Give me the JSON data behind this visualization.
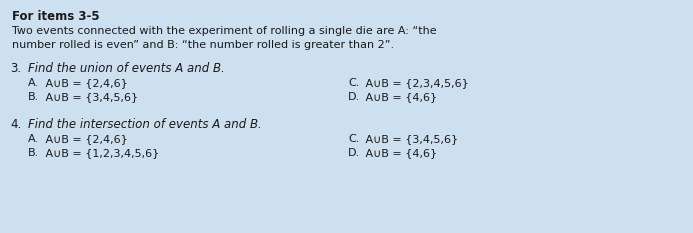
{
  "bg_color": "#cde0ef",
  "text_color": "#1a1a1a",
  "header_bold": "For items 3-5",
  "header_line1": "Two events connected with the experiment of rolling a single die are A: “the",
  "header_line2": "number rolled is even” and B: “the number rolled is greater than 2”.",
  "q3_num": "3.",
  "q3_text": "Find the union of events A and B.",
  "q3_A_label": "A.",
  "q3_A_math": " A∪B = {2,4,6}",
  "q3_B_label": "B.",
  "q3_B_math": " A∪B = {3,4,5,6}",
  "q3_C_label": "C.",
  "q3_C_math": " A∪B = {2,3,4,5,6}",
  "q3_D_label": "D.",
  "q3_D_math": " A∪B = {4,6}",
  "q4_num": "4.",
  "q4_text": "Find the intersection of events A and B.",
  "q4_A_label": "A.",
  "q4_A_math": " A∪B = {2,4,6}",
  "q4_B_label": "B.",
  "q4_B_math": " A∪B = {1,2,3,4,5,6}",
  "q4_C_label": "C.",
  "q4_C_math": " A∪B = {3,4,5,6}",
  "q4_D_label": "D.",
  "q4_D_math": " A∪B = {4,6}",
  "font_bold": 8.5,
  "font_body": 8.0,
  "font_q": 8.5,
  "font_ans": 8.0
}
